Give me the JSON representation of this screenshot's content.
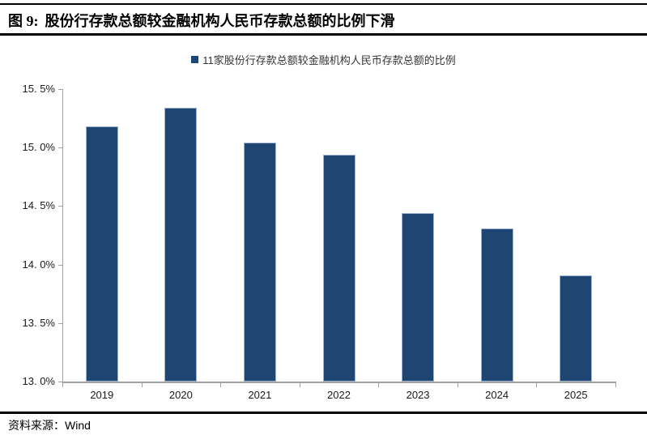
{
  "header": {
    "figure_prefix": "图 9:",
    "title": "股份行存款总额较金融机构人民币存款总额的比例下滑"
  },
  "legend": {
    "label": "11家股份行存款总额较金融机构人民币存款总额的比例"
  },
  "footer": {
    "source_label": "资料来源：",
    "source_value": "Wind"
  },
  "colors": {
    "bar_fill": "#1f4573",
    "bar_border": "#9db4d4",
    "axis": "#a0a0a0",
    "rule": "#000000"
  },
  "chart_data": {
    "type": "bar",
    "title": "11家股份行存款总额较金融机构人民币存款总额的比例",
    "categories": [
      "2019",
      "2020",
      "2021",
      "2022",
      "2023",
      "2024",
      "2025"
    ],
    "values": [
      15.18,
      15.34,
      15.04,
      14.94,
      14.44,
      14.31,
      13.91
    ],
    "unit": "%",
    "xlabel": "",
    "ylabel": "",
    "ylim": [
      13.0,
      15.5
    ],
    "ytick_step": 0.5,
    "ytick_labels": [
      "15. 5%",
      "15. 0%",
      "14. 5%",
      "14. 0%",
      "13. 5%",
      "13. 0%"
    ],
    "grid": false,
    "legend_position": "top-center"
  }
}
